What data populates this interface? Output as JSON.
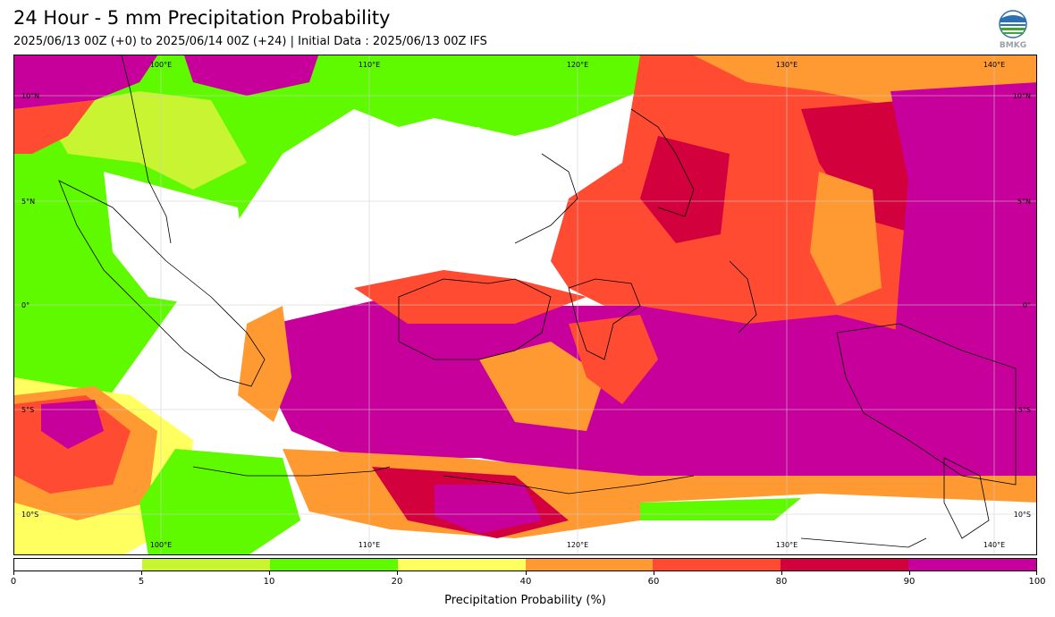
{
  "title": "24 Hour - 5 mm Precipitation Probability",
  "subtitle": "2025/06/13 00Z (+0) to 2025/06/14 00Z (+24) | Initial Data : 2025/06/13 00Z IFS",
  "logo": {
    "icon": "bmkg-logo",
    "text": "BMKG"
  },
  "map": {
    "lon_labels": [
      "100°E",
      "110°E",
      "120°E",
      "130°E",
      "140°E"
    ],
    "lat_labels_left": [
      "10°N",
      "5°N",
      "0°",
      "5°S",
      "10°S"
    ],
    "lat_labels_right": [
      "10°N",
      "5°N",
      "0°",
      "5°S",
      "10°S"
    ]
  },
  "colorbar": {
    "ticks": [
      "0",
      "5",
      "10",
      "20",
      "40",
      "60",
      "80",
      "90",
      "100"
    ],
    "colors": [
      "#ffffff",
      "#c8f432",
      "#5ffa00",
      "#ffff5f",
      "#ff9a32",
      "#ff4b32",
      "#d2003c",
      "#c8009b"
    ],
    "label": "Precipitation Probability (%)"
  }
}
